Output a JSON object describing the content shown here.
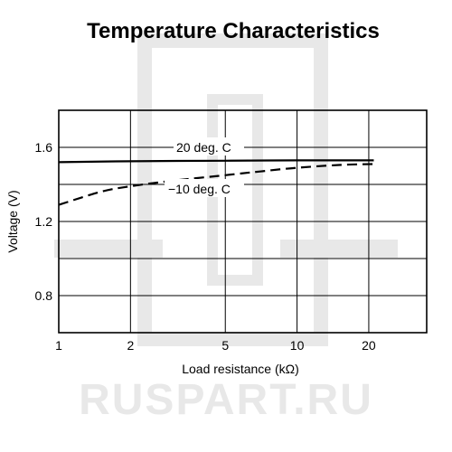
{
  "colors": {
    "line": "#000000",
    "grid": "#000000",
    "watermark": "#e8e8e8"
  },
  "watermark": {
    "text": "RUSPART.RU"
  },
  "chart_data": {
    "type": "line",
    "title": "Temperature Characteristics",
    "xlabel": "Load resistance (kΩ)",
    "ylabel": "Voltage (V)",
    "x_scale": "log",
    "xlim": [
      1,
      35
    ],
    "ylim": [
      0.6,
      1.8
    ],
    "x_ticks": [
      1,
      2,
      5,
      10,
      20
    ],
    "x_tick_labels": [
      "1",
      "2",
      "5",
      "10",
      "20"
    ],
    "x_grid": [
      1,
      2,
      5,
      10,
      20
    ],
    "y_ticks": [
      0.8,
      1.2,
      1.6
    ],
    "y_tick_labels": [
      "0.8",
      "1.2",
      "1.6"
    ],
    "y_grid": [
      0.8,
      1.0,
      1.2,
      1.4,
      1.6
    ],
    "grid": true,
    "series": [
      {
        "name": "20 deg. C",
        "style": "solid",
        "x": [
          1,
          2,
          5,
          10,
          21
        ],
        "y": [
          1.52,
          1.525,
          1.528,
          1.53,
          1.53
        ]
      },
      {
        "name": "−10 deg. C",
        "style": "dashed",
        "x": [
          1,
          1.5,
          2,
          3,
          5,
          7,
          10,
          15,
          21
        ],
        "y": [
          1.29,
          1.36,
          1.39,
          1.42,
          1.45,
          1.47,
          1.49,
          1.505,
          1.51
        ]
      }
    ],
    "annotations": [
      {
        "text": "20 deg. C",
        "series": 0
      },
      {
        "text": "−10 deg. C",
        "series": 1
      }
    ]
  }
}
